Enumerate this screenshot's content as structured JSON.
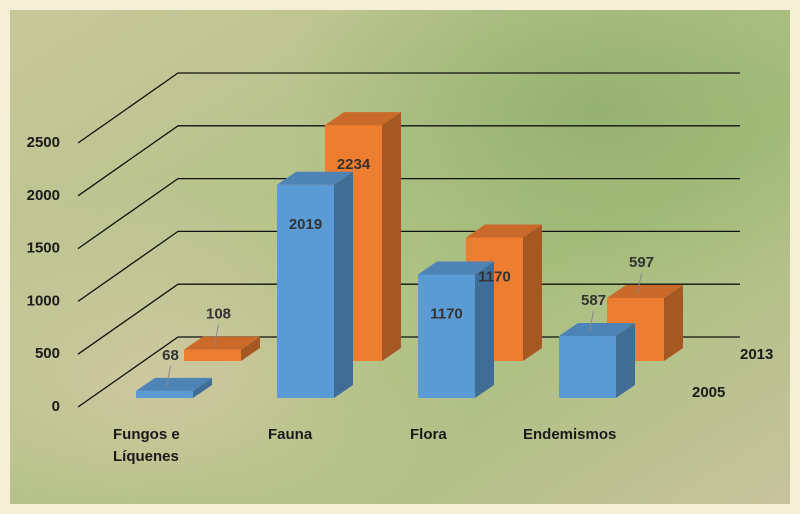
{
  "chart_data": {
    "type": "bar3d",
    "categories": [
      [
        "Fungos e",
        "Líquenes"
      ],
      "Fauna",
      "Flora",
      "Endemismos"
    ],
    "series": [
      {
        "name": "2005",
        "color": "#5b9bd5",
        "values": [
          68,
          2019,
          1170,
          587
        ]
      },
      {
        "name": "2013",
        "color": "#ed7d31",
        "values": [
          108,
          2234,
          1170,
          597
        ]
      }
    ],
    "ylim": [
      0,
      2500
    ],
    "yticks": [
      0,
      500,
      1000,
      1500,
      2000,
      2500
    ],
    "grid": true
  }
}
